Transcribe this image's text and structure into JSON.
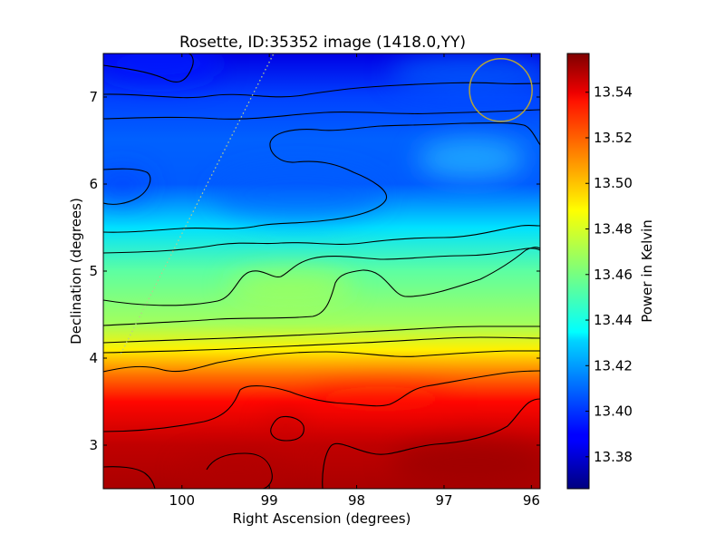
{
  "chart_data": {
    "type": "heatmap",
    "title": "Rosette, ID:35352 image (1418.0,YY)",
    "xlabel": "Right Ascension (degrees)",
    "ylabel": "Declination (degrees)",
    "colorbar_label": "Power in Kelvin",
    "colormap": "jet",
    "xlim": [
      100.9,
      95.9
    ],
    "ylim": [
      2.5,
      7.5
    ],
    "x_ticks": [
      100,
      99,
      98,
      97,
      96
    ],
    "x_tick_labels": [
      "100",
      "99",
      "98",
      "97",
      "96"
    ],
    "y_ticks": [
      3,
      4,
      5,
      6,
      7
    ],
    "y_tick_labels": [
      "3",
      "4",
      "5",
      "6",
      "7"
    ],
    "colorbar_range": [
      13.366,
      13.557
    ],
    "colorbar_ticks": [
      13.38,
      13.4,
      13.42,
      13.44,
      13.46,
      13.48,
      13.5,
      13.52,
      13.54
    ],
    "colorbar_tick_labels": [
      "13.38",
      "13.40",
      "13.42",
      "13.44",
      "13.46",
      "13.48",
      "13.50",
      "13.52",
      "13.54"
    ],
    "dec_profile_approx": [
      {
        "dec": 2.5,
        "value": 13.549
      },
      {
        "dec": 3.0,
        "value": 13.545
      },
      {
        "dec": 3.5,
        "value": 13.532
      },
      {
        "dec": 3.8,
        "value": 13.512
      },
      {
        "dec": 4.1,
        "value": 13.488
      },
      {
        "dec": 4.4,
        "value": 13.468
      },
      {
        "dec": 5.0,
        "value": 13.455
      },
      {
        "dec": 5.5,
        "value": 13.432
      },
      {
        "dec": 6.0,
        "value": 13.407
      },
      {
        "dec": 6.5,
        "value": 13.408
      },
      {
        "dec": 7.0,
        "value": 13.402
      },
      {
        "dec": 7.5,
        "value": 13.385
      }
    ],
    "overlays": {
      "beam_circle": {
        "ra": 96.35,
        "dec": 7.08,
        "radius_deg": 0.36,
        "color": "#b5a43a"
      },
      "dotted_line": {
        "from": {
          "ra": 100.7,
          "dec": 4.05
        },
        "to": {
          "ra": 98.95,
          "dec": 7.5
        },
        "color": "#b6ce8c"
      }
    }
  }
}
